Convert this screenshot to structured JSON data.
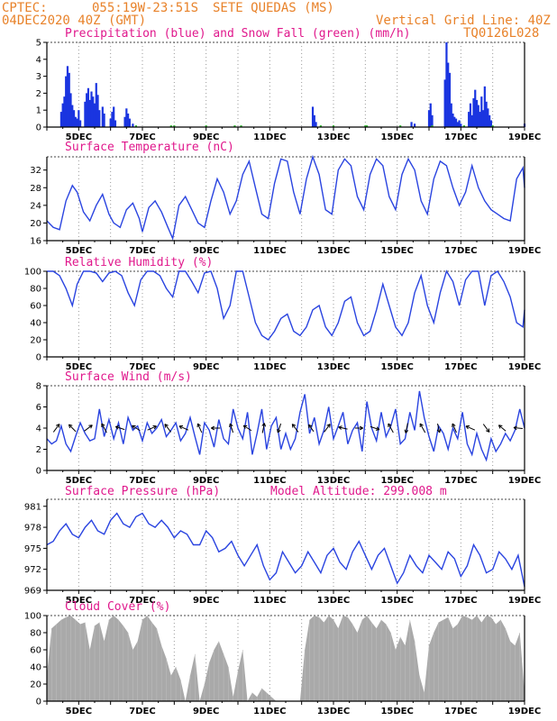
{
  "header": {
    "source": "CPTEC:",
    "coords": "055:19W-23:51S",
    "station": "SETE QUEDAS (MS)",
    "run": "04DEC2020 40Z (GMT)",
    "grid_note": "Vertical Grid Line: 40Z",
    "code": "TQ0126L028"
  },
  "colors": {
    "header": "#e8822a",
    "title": "#e0188c",
    "precip": "#1a35e0",
    "snow": "#2eb82e",
    "line": "#2a44e0",
    "cloud": "#a9a9a9"
  },
  "x_axis": {
    "ticks": [
      "5DEC",
      "7DEC",
      "9DEC",
      "11DEC",
      "13DEC",
      "15DEC",
      "17DEC",
      "19DEC"
    ]
  },
  "chart_data": [
    {
      "id": "precip",
      "type": "bar",
      "title": "Precipitation (blue) and Snow Fall (green) (mm/h)",
      "ylim": [
        0,
        5
      ],
      "yticks": [
        0,
        1,
        2,
        3,
        4,
        5
      ],
      "series": [
        {
          "name": "Precipitation",
          "color": "#1a35e0",
          "x": [
            4.45,
            4.5,
            4.55,
            4.6,
            4.65,
            4.7,
            4.75,
            4.8,
            4.85,
            4.9,
            4.95,
            5.0,
            5.05,
            5.2,
            5.25,
            5.3,
            5.35,
            5.4,
            5.45,
            5.5,
            5.55,
            5.6,
            5.65,
            5.75,
            5.8,
            6.0,
            6.05,
            6.1,
            6.15,
            6.45,
            6.5,
            6.55,
            6.6,
            6.7,
            12.35,
            12.4,
            12.45,
            15.45,
            15.55,
            16.0,
            16.05,
            16.1,
            16.5,
            16.55,
            16.6,
            16.65,
            16.7,
            16.75,
            16.8,
            16.85,
            16.9,
            16.95,
            17.0,
            17.25,
            17.3,
            17.35,
            17.4,
            17.45,
            17.5,
            17.55,
            17.6,
            17.65,
            17.7,
            17.75,
            17.8,
            17.85,
            17.9,
            17.95,
            19.0
          ],
          "values": [
            0.9,
            1.4,
            1.8,
            3.0,
            3.6,
            3.2,
            2.0,
            1.3,
            1.0,
            0.6,
            0.5,
            1.0,
            0.4,
            1.5,
            2.0,
            2.3,
            1.6,
            2.1,
            1.8,
            1.4,
            2.6,
            1.9,
            1.0,
            1.2,
            0.8,
            0.5,
            0.9,
            1.2,
            0.4,
            0.6,
            1.1,
            0.8,
            0.5,
            0.2,
            1.2,
            0.7,
            0.3,
            0.3,
            0.2,
            1.0,
            1.4,
            0.7,
            2.8,
            5.0,
            3.8,
            3.2,
            1.4,
            0.8,
            0.6,
            0.5,
            0.3,
            0.4,
            0.2,
            0.9,
            1.4,
            0.7,
            1.7,
            2.2,
            1.6,
            1.3,
            0.9,
            1.8,
            1.0,
            2.4,
            1.5,
            1.1,
            0.7,
            0.4,
            0.2
          ]
        },
        {
          "name": "Snow Fall",
          "color": "#2eb82e",
          "x": [
            6.8,
            7.9,
            8.0,
            9.0,
            9.9,
            10.1,
            12.6,
            13.0,
            14.0,
            14.05,
            15.1,
            16.1,
            17.1,
            18.0
          ],
          "values": [
            0.1,
            0.1,
            0.1,
            0.1,
            0.1,
            0.1,
            0.1,
            0.1,
            0.1,
            0.1,
            0.1,
            0.1,
            0.1,
            0.1
          ]
        }
      ]
    },
    {
      "id": "temp",
      "type": "line",
      "title": "Surface Temperature (nC)",
      "ylim": [
        16,
        35
      ],
      "yticks": [
        16,
        20,
        24,
        28,
        32
      ],
      "x": [
        4.0,
        4.2,
        4.4,
        4.6,
        4.8,
        4.95,
        5.15,
        5.35,
        5.55,
        5.75,
        5.95,
        6.1,
        6.3,
        6.5,
        6.7,
        6.9,
        7.0,
        7.2,
        7.4,
        7.6,
        7.8,
        7.95,
        8.15,
        8.35,
        8.55,
        8.75,
        8.95,
        9.15,
        9.35,
        9.55,
        9.75,
        9.95,
        10.15,
        10.35,
        10.55,
        10.75,
        10.95,
        11.15,
        11.35,
        11.55,
        11.75,
        11.95,
        12.15,
        12.35,
        12.55,
        12.75,
        12.95,
        13.15,
        13.35,
        13.55,
        13.75,
        13.95,
        14.15,
        14.35,
        14.55,
        14.75,
        14.95,
        15.15,
        15.35,
        15.55,
        15.75,
        15.95,
        16.15,
        16.35,
        16.55,
        16.75,
        16.95,
        17.15,
        17.35,
        17.55,
        17.75,
        17.95,
        18.15,
        18.35,
        18.55,
        18.75,
        18.95,
        19.0
      ],
      "values": [
        20.5,
        19,
        18.5,
        25,
        28.5,
        27,
        22.5,
        20.5,
        24,
        26.5,
        22,
        20,
        19,
        23,
        24.5,
        21,
        18,
        23.5,
        25,
        22.5,
        19,
        16.5,
        24,
        26,
        23,
        20,
        19,
        25,
        30,
        27,
        22,
        25,
        31,
        34,
        28,
        22,
        21,
        29,
        34.5,
        34,
        27,
        22,
        30,
        35,
        31,
        23,
        22,
        32,
        34.5,
        33,
        26,
        23,
        31,
        34.5,
        33,
        26,
        23,
        31,
        34.5,
        32,
        25,
        22,
        30,
        34,
        33,
        28,
        24,
        27,
        33,
        28,
        25,
        23,
        22,
        21,
        20.5,
        30,
        32.5,
        28
      ]
    },
    {
      "id": "rh",
      "type": "line",
      "title": "Relative Humidity (%)",
      "ylim": [
        0,
        100
      ],
      "yticks": [
        0,
        20,
        40,
        60,
        80,
        100
      ],
      "x": [
        4.0,
        4.2,
        4.4,
        4.6,
        4.8,
        4.95,
        5.15,
        5.35,
        5.55,
        5.75,
        5.95,
        6.15,
        6.35,
        6.55,
        6.75,
        6.95,
        7.15,
        7.35,
        7.55,
        7.75,
        7.95,
        8.15,
        8.35,
        8.55,
        8.75,
        8.95,
        9.15,
        9.35,
        9.55,
        9.75,
        9.95,
        10.15,
        10.35,
        10.55,
        10.75,
        10.95,
        11.15,
        11.35,
        11.55,
        11.75,
        11.95,
        12.15,
        12.35,
        12.55,
        12.75,
        12.95,
        13.15,
        13.35,
        13.55,
        13.75,
        13.95,
        14.15,
        14.35,
        14.55,
        14.75,
        14.95,
        15.15,
        15.35,
        15.55,
        15.75,
        15.95,
        16.15,
        16.35,
        16.55,
        16.75,
        16.95,
        17.15,
        17.35,
        17.55,
        17.75,
        17.95,
        18.15,
        18.35,
        18.55,
        18.75,
        18.95,
        19.0
      ],
      "values": [
        100,
        100,
        95,
        80,
        60,
        85,
        100,
        100,
        98,
        88,
        98,
        100,
        95,
        75,
        60,
        90,
        100,
        100,
        95,
        80,
        70,
        100,
        100,
        88,
        75,
        98,
        100,
        80,
        45,
        60,
        100,
        100,
        70,
        40,
        25,
        20,
        30,
        45,
        50,
        30,
        25,
        35,
        55,
        60,
        35,
        25,
        40,
        65,
        70,
        40,
        25,
        30,
        55,
        85,
        60,
        35,
        25,
        40,
        75,
        95,
        60,
        40,
        75,
        100,
        88,
        60,
        90,
        100,
        100,
        60,
        95,
        100,
        88,
        70,
        40,
        35,
        55
      ]
    },
    {
      "id": "wind",
      "type": "line",
      "title": "Surface Wind (m/s)",
      "ylim": [
        0,
        8
      ],
      "yticks": [
        0,
        2,
        4,
        6,
        8
      ],
      "x": [
        4.0,
        4.15,
        4.3,
        4.45,
        4.6,
        4.75,
        4.9,
        5.05,
        5.2,
        5.35,
        5.5,
        5.65,
        5.8,
        5.95,
        6.1,
        6.25,
        6.4,
        6.55,
        6.7,
        6.85,
        7.0,
        7.15,
        7.3,
        7.45,
        7.6,
        7.75,
        7.9,
        8.05,
        8.2,
        8.35,
        8.5,
        8.65,
        8.8,
        8.95,
        9.1,
        9.25,
        9.4,
        9.55,
        9.7,
        9.85,
        10.0,
        10.15,
        10.3,
        10.45,
        10.6,
        10.75,
        10.9,
        11.05,
        11.2,
        11.35,
        11.5,
        11.65,
        11.8,
        11.95,
        12.1,
        12.25,
        12.4,
        12.55,
        12.7,
        12.85,
        13.0,
        13.15,
        13.3,
        13.45,
        13.6,
        13.75,
        13.9,
        14.05,
        14.2,
        14.35,
        14.5,
        14.65,
        14.8,
        14.95,
        15.1,
        15.25,
        15.4,
        15.55,
        15.7,
        15.85,
        16.0,
        16.15,
        16.3,
        16.45,
        16.6,
        16.75,
        16.9,
        17.05,
        17.2,
        17.35,
        17.5,
        17.65,
        17.8,
        17.95,
        18.1,
        18.25,
        18.4,
        18.55,
        18.7,
        18.85,
        19.0
      ],
      "values": [
        3.0,
        2.5,
        2.8,
        4.2,
        2.5,
        1.8,
        3.2,
        4.5,
        3.5,
        2.8,
        3.0,
        5.8,
        3.2,
        4.8,
        3.0,
        4.5,
        2.5,
        5.0,
        3.8,
        4.2,
        2.8,
        4.5,
        3.5,
        4.0,
        4.8,
        3.2,
        3.8,
        4.5,
        2.8,
        3.5,
        5.0,
        3.2,
        1.5,
        4.5,
        3.8,
        2.2,
        4.8,
        3.0,
        2.5,
        5.8,
        4.0,
        3.0,
        5.5,
        1.5,
        3.5,
        5.8,
        2.0,
        4.2,
        5.0,
        2.0,
        3.5,
        2.0,
        3.0,
        5.5,
        7.2,
        3.5,
        5.0,
        2.5,
        3.8,
        6.0,
        3.0,
        4.2,
        5.5,
        2.5,
        3.8,
        4.5,
        1.8,
        6.5,
        4.0,
        2.8,
        5.5,
        3.2,
        4.2,
        5.8,
        2.5,
        3.0,
        5.5,
        3.8,
        7.5,
        5.0,
        3.2,
        1.8,
        4.2,
        3.5,
        2.0,
        4.0,
        3.0,
        5.5,
        2.5,
        1.5,
        3.5,
        2.0,
        1.0,
        3.0,
        1.8,
        2.5,
        3.5,
        2.8,
        3.8,
        5.8,
        4.0
      ],
      "arrows": {
        "x": [
          4.3,
          4.8,
          5.3,
          5.8,
          6.3,
          6.8,
          7.3,
          7.8,
          8.3,
          8.8,
          9.3,
          9.8,
          10.3,
          10.8,
          11.3,
          11.8,
          12.3,
          12.8,
          13.3,
          13.8,
          14.3,
          14.8,
          15.3,
          15.8,
          16.3,
          16.8,
          17.3,
          17.8,
          18.3,
          18.8
        ],
        "u": [
          0.6,
          -0.7,
          0.8,
          -0.5,
          -0.9,
          -0.8,
          0.9,
          -0.6,
          -0.9,
          -0.4,
          -0.9,
          -0.3,
          -0.8,
          0.2,
          -0.3,
          -0.6,
          -0.5,
          0.6,
          -0.9,
          0.8,
          0.9,
          -0.5,
          -0.2,
          -0.5,
          0.2,
          -0.4,
          -0.9,
          0.6,
          -0.7,
          -0.9
        ],
        "v": [
          0.8,
          0.7,
          0.6,
          0.9,
          0.3,
          0.5,
          0.4,
          0.8,
          0.4,
          0.9,
          0.0,
          0.9,
          0.5,
          1.0,
          -0.9,
          0.8,
          0.7,
          0.8,
          0.2,
          0.0,
          -0.3,
          0.9,
          -1.0,
          0.9,
          -0.9,
          0.9,
          0.4,
          -0.8,
          0.6,
          0.1
        ]
      }
    },
    {
      "id": "pres",
      "type": "line",
      "title": "Surface Pressure (hPa)",
      "annotation": "Model Altitude: 299.008 m",
      "ylim": [
        969,
        982
      ],
      "yticks": [
        969,
        972,
        975,
        978,
        981
      ],
      "x": [
        4.0,
        4.2,
        4.4,
        4.6,
        4.8,
        5.0,
        5.2,
        5.4,
        5.6,
        5.8,
        6.0,
        6.2,
        6.4,
        6.6,
        6.8,
        7.0,
        7.2,
        7.4,
        7.6,
        7.8,
        8.0,
        8.2,
        8.4,
        8.6,
        8.8,
        9.0,
        9.2,
        9.4,
        9.6,
        9.8,
        10.0,
        10.2,
        10.4,
        10.6,
        10.8,
        11.0,
        11.2,
        11.4,
        11.6,
        11.8,
        12.0,
        12.2,
        12.4,
        12.6,
        12.8,
        13.0,
        13.2,
        13.4,
        13.6,
        13.8,
        14.0,
        14.2,
        14.4,
        14.6,
        14.8,
        15.0,
        15.2,
        15.4,
        15.6,
        15.8,
        16.0,
        16.2,
        16.4,
        16.6,
        16.8,
        17.0,
        17.2,
        17.4,
        17.6,
        17.8,
        18.0,
        18.2,
        18.4,
        18.6,
        18.8,
        19.0
      ],
      "values": [
        975.5,
        976,
        977.5,
        978.5,
        977,
        976.5,
        978,
        979,
        977.5,
        977,
        979,
        980,
        978.5,
        978,
        979.5,
        980,
        978.5,
        978,
        979,
        978,
        976.5,
        977.5,
        977,
        975.5,
        975.5,
        977.5,
        976.5,
        974.5,
        975,
        976,
        974,
        972.5,
        974,
        975.5,
        972.5,
        970.5,
        971.5,
        974.5,
        973,
        971.5,
        972.5,
        974.5,
        973,
        971.5,
        974,
        975,
        973,
        972,
        974.5,
        976,
        974,
        972,
        974,
        975,
        972.5,
        970,
        971.5,
        974,
        972.5,
        971.5,
        974,
        973,
        972,
        974.5,
        973.5,
        971,
        972.5,
        975.5,
        974,
        971.5,
        972,
        974.5,
        973.5,
        972,
        974,
        969.5
      ]
    },
    {
      "id": "cloud",
      "type": "area",
      "title": "Cloud Cover (%)",
      "ylim": [
        0,
        100
      ],
      "yticks": [
        0,
        20,
        40,
        60,
        80,
        100
      ],
      "x": [
        4.0,
        4.15,
        4.3,
        4.45,
        4.6,
        4.75,
        4.9,
        5.05,
        5.2,
        5.35,
        5.5,
        5.65,
        5.8,
        5.95,
        6.1,
        6.25,
        6.4,
        6.55,
        6.7,
        6.85,
        7.0,
        7.15,
        7.3,
        7.45,
        7.6,
        7.75,
        7.9,
        8.05,
        8.2,
        8.35,
        8.5,
        8.65,
        8.8,
        8.95,
        9.1,
        9.25,
        9.4,
        9.55,
        9.7,
        9.85,
        10.0,
        10.15,
        10.3,
        10.45,
        10.6,
        10.75,
        10.9,
        11.05,
        11.2,
        11.35,
        11.5,
        11.65,
        11.8,
        11.95,
        12.1,
        12.25,
        12.4,
        12.55,
        12.7,
        12.85,
        13.0,
        13.15,
        13.3,
        13.45,
        13.6,
        13.75,
        13.9,
        14.05,
        14.2,
        14.35,
        14.5,
        14.65,
        14.8,
        14.95,
        15.1,
        15.25,
        15.4,
        15.55,
        15.7,
        15.85,
        16.0,
        16.15,
        16.3,
        16.45,
        16.6,
        16.75,
        16.9,
        17.05,
        17.2,
        17.35,
        17.5,
        17.65,
        17.8,
        17.95,
        18.1,
        18.25,
        18.4,
        18.55,
        18.7,
        18.85,
        19.0
      ],
      "values": [
        30,
        85,
        90,
        95,
        98,
        100,
        95,
        90,
        92,
        60,
        88,
        92,
        70,
        95,
        100,
        95,
        88,
        80,
        60,
        70,
        95,
        100,
        92,
        85,
        65,
        50,
        30,
        40,
        25,
        0,
        30,
        55,
        0,
        20,
        45,
        60,
        70,
        55,
        40,
        5,
        35,
        60,
        0,
        10,
        5,
        15,
        10,
        5,
        0,
        0,
        0,
        0,
        0,
        0,
        60,
        95,
        100,
        98,
        92,
        100,
        95,
        85,
        100,
        98,
        90,
        80,
        95,
        100,
        92,
        85,
        95,
        90,
        80,
        60,
        75,
        65,
        95,
        70,
        30,
        10,
        65,
        80,
        92,
        95,
        98,
        85,
        90,
        100,
        98,
        95,
        100,
        92,
        100,
        98,
        90,
        95,
        85,
        70,
        65,
        80,
        10
      ]
    }
  ]
}
